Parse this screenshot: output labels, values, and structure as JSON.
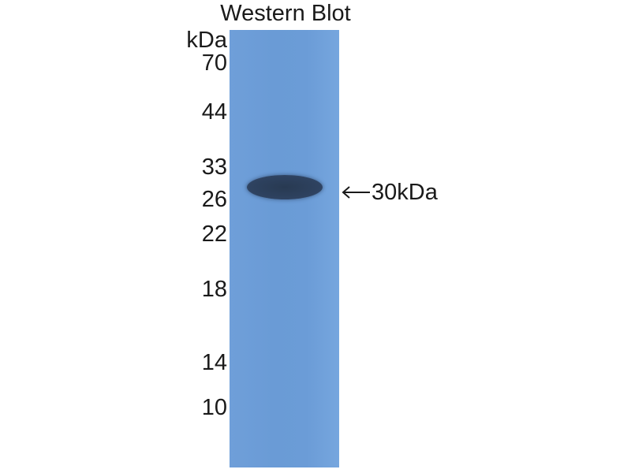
{
  "title": "Western Blot",
  "unit_label": "kDa",
  "markers": [
    "70",
    "44",
    "33",
    "26",
    "22",
    "18",
    "14",
    "10"
  ],
  "band_annotation": "30kDa",
  "colors": {
    "lane": "#6a9bd6",
    "band": "#2e4260"
  }
}
